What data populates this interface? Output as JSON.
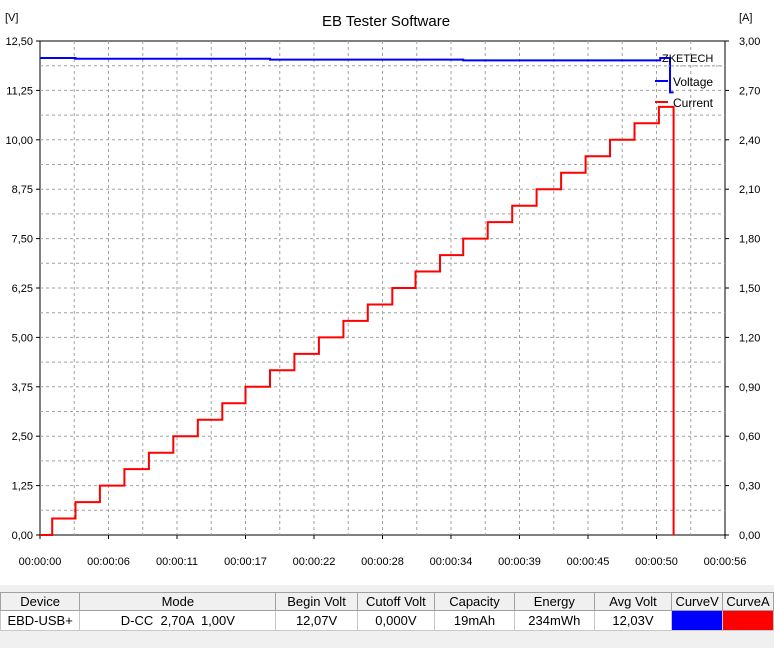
{
  "chart_data": {
    "type": "line",
    "title": "EB Tester Software",
    "y_left_unit": "[V]",
    "y_right_unit": "[A]",
    "x_ticks": [
      "00:00:00",
      "00:00:06",
      "00:00:11",
      "00:00:17",
      "00:00:22",
      "00:00:28",
      "00:00:34",
      "00:00:39",
      "00:00:45",
      "00:00:50",
      "00:00:56"
    ],
    "y_left_ticks": [
      "0,00",
      "1,25",
      "2,50",
      "3,75",
      "5,00",
      "6,25",
      "7,50",
      "8,75",
      "10,00",
      "11,25",
      "12,50"
    ],
    "y_right_ticks": [
      "0,00",
      "0,30",
      "0,60",
      "0,90",
      "1,20",
      "1,50",
      "1,80",
      "2,10",
      "2,40",
      "2,70",
      "3,00"
    ],
    "xlim_s": [
      0,
      56
    ],
    "ylim_left": [
      0,
      12.5
    ],
    "ylim_right": [
      0,
      3.0
    ],
    "grid": true,
    "legend_title": "ZKETECH",
    "legend_position": "top-right",
    "series": [
      {
        "name": "Voltage",
        "axis": "left",
        "color": "#0000ff",
        "points": [
          [
            0,
            12.07
          ],
          [
            2.9,
            12.07
          ],
          [
            2.9,
            12.05
          ],
          [
            18.8,
            12.05
          ],
          [
            18.8,
            12.03
          ],
          [
            34.6,
            12.03
          ],
          [
            34.6,
            12.01
          ],
          [
            50.7,
            12.01
          ],
          [
            50.7,
            12.07
          ],
          [
            51.5,
            12.07
          ],
          [
            51.5,
            11.2
          ],
          [
            51.8,
            11.2
          ]
        ]
      },
      {
        "name": "Current",
        "axis": "right",
        "color": "#ff0000",
        "points": [
          [
            0,
            0.0
          ],
          [
            1.0,
            0.0
          ],
          [
            1.0,
            0.1
          ],
          [
            2.9,
            0.1
          ],
          [
            2.9,
            0.2
          ],
          [
            4.9,
            0.2
          ],
          [
            4.9,
            0.3
          ],
          [
            6.9,
            0.3
          ],
          [
            6.9,
            0.4
          ],
          [
            8.9,
            0.4
          ],
          [
            8.9,
            0.5
          ],
          [
            10.9,
            0.5
          ],
          [
            10.9,
            0.6
          ],
          [
            12.9,
            0.6
          ],
          [
            12.9,
            0.7
          ],
          [
            14.9,
            0.7
          ],
          [
            14.9,
            0.8
          ],
          [
            16.8,
            0.8
          ],
          [
            16.8,
            0.9
          ],
          [
            18.8,
            0.9
          ],
          [
            18.8,
            1.0
          ],
          [
            20.8,
            1.0
          ],
          [
            20.8,
            1.1
          ],
          [
            22.8,
            1.1
          ],
          [
            22.8,
            1.2
          ],
          [
            24.8,
            1.2
          ],
          [
            24.8,
            1.3
          ],
          [
            26.8,
            1.3
          ],
          [
            26.8,
            1.4
          ],
          [
            28.8,
            1.4
          ],
          [
            28.8,
            1.5
          ],
          [
            30.7,
            1.5
          ],
          [
            30.7,
            1.6
          ],
          [
            32.7,
            1.6
          ],
          [
            32.7,
            1.7
          ],
          [
            34.6,
            1.7
          ],
          [
            34.6,
            1.8
          ],
          [
            36.6,
            1.8
          ],
          [
            36.6,
            1.9
          ],
          [
            38.6,
            1.9
          ],
          [
            38.6,
            2.0
          ],
          [
            40.6,
            2.0
          ],
          [
            40.6,
            2.1
          ],
          [
            42.6,
            2.1
          ],
          [
            42.6,
            2.2
          ],
          [
            44.6,
            2.2
          ],
          [
            44.6,
            2.3
          ],
          [
            46.6,
            2.3
          ],
          [
            46.6,
            2.4
          ],
          [
            48.6,
            2.4
          ],
          [
            48.6,
            2.5
          ],
          [
            50.6,
            2.5
          ],
          [
            50.6,
            2.6
          ],
          [
            51.8,
            2.6
          ],
          [
            51.8,
            0.0
          ]
        ]
      }
    ]
  },
  "table": {
    "headers": [
      "Device",
      "Mode",
      "Begin Volt",
      "Cutoff Volt",
      "Capacity",
      "Energy",
      "Avg Volt",
      "CurveV",
      "CurveA"
    ],
    "row": [
      "EBD-USB+",
      "D-CC  2,70A  1,00V",
      "12,07V",
      "0,000V",
      "19mAh",
      "234mWh",
      "12,03V",
      "",
      ""
    ],
    "curve_colors": [
      "#0000ff",
      "#ff0000"
    ]
  }
}
